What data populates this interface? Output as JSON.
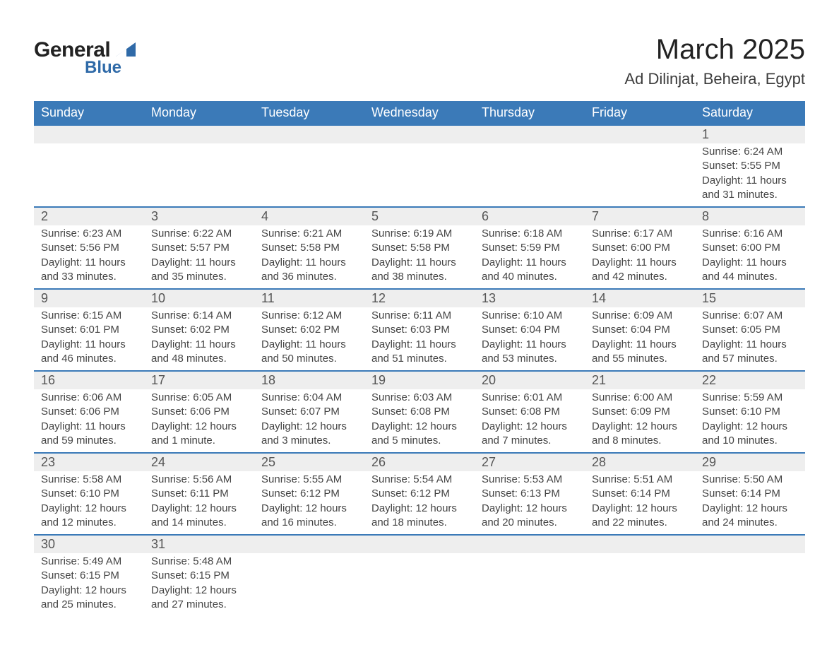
{
  "logo": {
    "text1": "General",
    "text2": "Blue"
  },
  "title": "March 2025",
  "location": "Ad Dilinjat, Beheira, Egypt",
  "colors": {
    "header_bg": "#3b7ab8",
    "header_text": "#ffffff",
    "daynum_bg": "#eeeeee",
    "row_border": "#3b7ab8",
    "body_text": "#444444",
    "logo_blue": "#2f6aa8"
  },
  "typography": {
    "title_fontsize": 40,
    "location_fontsize": 22,
    "header_fontsize": 18,
    "daynum_fontsize": 18,
    "cell_fontsize": 15
  },
  "weekdays": [
    "Sunday",
    "Monday",
    "Tuesday",
    "Wednesday",
    "Thursday",
    "Friday",
    "Saturday"
  ],
  "weeks": [
    [
      null,
      null,
      null,
      null,
      null,
      null,
      {
        "n": "1",
        "sunrise": "Sunrise: 6:24 AM",
        "sunset": "Sunset: 5:55 PM",
        "day1": "Daylight: 11 hours",
        "day2": "and 31 minutes."
      }
    ],
    [
      {
        "n": "2",
        "sunrise": "Sunrise: 6:23 AM",
        "sunset": "Sunset: 5:56 PM",
        "day1": "Daylight: 11 hours",
        "day2": "and 33 minutes."
      },
      {
        "n": "3",
        "sunrise": "Sunrise: 6:22 AM",
        "sunset": "Sunset: 5:57 PM",
        "day1": "Daylight: 11 hours",
        "day2": "and 35 minutes."
      },
      {
        "n": "4",
        "sunrise": "Sunrise: 6:21 AM",
        "sunset": "Sunset: 5:58 PM",
        "day1": "Daylight: 11 hours",
        "day2": "and 36 minutes."
      },
      {
        "n": "5",
        "sunrise": "Sunrise: 6:19 AM",
        "sunset": "Sunset: 5:58 PM",
        "day1": "Daylight: 11 hours",
        "day2": "and 38 minutes."
      },
      {
        "n": "6",
        "sunrise": "Sunrise: 6:18 AM",
        "sunset": "Sunset: 5:59 PM",
        "day1": "Daylight: 11 hours",
        "day2": "and 40 minutes."
      },
      {
        "n": "7",
        "sunrise": "Sunrise: 6:17 AM",
        "sunset": "Sunset: 6:00 PM",
        "day1": "Daylight: 11 hours",
        "day2": "and 42 minutes."
      },
      {
        "n": "8",
        "sunrise": "Sunrise: 6:16 AM",
        "sunset": "Sunset: 6:00 PM",
        "day1": "Daylight: 11 hours",
        "day2": "and 44 minutes."
      }
    ],
    [
      {
        "n": "9",
        "sunrise": "Sunrise: 6:15 AM",
        "sunset": "Sunset: 6:01 PM",
        "day1": "Daylight: 11 hours",
        "day2": "and 46 minutes."
      },
      {
        "n": "10",
        "sunrise": "Sunrise: 6:14 AM",
        "sunset": "Sunset: 6:02 PM",
        "day1": "Daylight: 11 hours",
        "day2": "and 48 minutes."
      },
      {
        "n": "11",
        "sunrise": "Sunrise: 6:12 AM",
        "sunset": "Sunset: 6:02 PM",
        "day1": "Daylight: 11 hours",
        "day2": "and 50 minutes."
      },
      {
        "n": "12",
        "sunrise": "Sunrise: 6:11 AM",
        "sunset": "Sunset: 6:03 PM",
        "day1": "Daylight: 11 hours",
        "day2": "and 51 minutes."
      },
      {
        "n": "13",
        "sunrise": "Sunrise: 6:10 AM",
        "sunset": "Sunset: 6:04 PM",
        "day1": "Daylight: 11 hours",
        "day2": "and 53 minutes."
      },
      {
        "n": "14",
        "sunrise": "Sunrise: 6:09 AM",
        "sunset": "Sunset: 6:04 PM",
        "day1": "Daylight: 11 hours",
        "day2": "and 55 minutes."
      },
      {
        "n": "15",
        "sunrise": "Sunrise: 6:07 AM",
        "sunset": "Sunset: 6:05 PM",
        "day1": "Daylight: 11 hours",
        "day2": "and 57 minutes."
      }
    ],
    [
      {
        "n": "16",
        "sunrise": "Sunrise: 6:06 AM",
        "sunset": "Sunset: 6:06 PM",
        "day1": "Daylight: 11 hours",
        "day2": "and 59 minutes."
      },
      {
        "n": "17",
        "sunrise": "Sunrise: 6:05 AM",
        "sunset": "Sunset: 6:06 PM",
        "day1": "Daylight: 12 hours",
        "day2": "and 1 minute."
      },
      {
        "n": "18",
        "sunrise": "Sunrise: 6:04 AM",
        "sunset": "Sunset: 6:07 PM",
        "day1": "Daylight: 12 hours",
        "day2": "and 3 minutes."
      },
      {
        "n": "19",
        "sunrise": "Sunrise: 6:03 AM",
        "sunset": "Sunset: 6:08 PM",
        "day1": "Daylight: 12 hours",
        "day2": "and 5 minutes."
      },
      {
        "n": "20",
        "sunrise": "Sunrise: 6:01 AM",
        "sunset": "Sunset: 6:08 PM",
        "day1": "Daylight: 12 hours",
        "day2": "and 7 minutes."
      },
      {
        "n": "21",
        "sunrise": "Sunrise: 6:00 AM",
        "sunset": "Sunset: 6:09 PM",
        "day1": "Daylight: 12 hours",
        "day2": "and 8 minutes."
      },
      {
        "n": "22",
        "sunrise": "Sunrise: 5:59 AM",
        "sunset": "Sunset: 6:10 PM",
        "day1": "Daylight: 12 hours",
        "day2": "and 10 minutes."
      }
    ],
    [
      {
        "n": "23",
        "sunrise": "Sunrise: 5:58 AM",
        "sunset": "Sunset: 6:10 PM",
        "day1": "Daylight: 12 hours",
        "day2": "and 12 minutes."
      },
      {
        "n": "24",
        "sunrise": "Sunrise: 5:56 AM",
        "sunset": "Sunset: 6:11 PM",
        "day1": "Daylight: 12 hours",
        "day2": "and 14 minutes."
      },
      {
        "n": "25",
        "sunrise": "Sunrise: 5:55 AM",
        "sunset": "Sunset: 6:12 PM",
        "day1": "Daylight: 12 hours",
        "day2": "and 16 minutes."
      },
      {
        "n": "26",
        "sunrise": "Sunrise: 5:54 AM",
        "sunset": "Sunset: 6:12 PM",
        "day1": "Daylight: 12 hours",
        "day2": "and 18 minutes."
      },
      {
        "n": "27",
        "sunrise": "Sunrise: 5:53 AM",
        "sunset": "Sunset: 6:13 PM",
        "day1": "Daylight: 12 hours",
        "day2": "and 20 minutes."
      },
      {
        "n": "28",
        "sunrise": "Sunrise: 5:51 AM",
        "sunset": "Sunset: 6:14 PM",
        "day1": "Daylight: 12 hours",
        "day2": "and 22 minutes."
      },
      {
        "n": "29",
        "sunrise": "Sunrise: 5:50 AM",
        "sunset": "Sunset: 6:14 PM",
        "day1": "Daylight: 12 hours",
        "day2": "and 24 minutes."
      }
    ],
    [
      {
        "n": "30",
        "sunrise": "Sunrise: 5:49 AM",
        "sunset": "Sunset: 6:15 PM",
        "day1": "Daylight: 12 hours",
        "day2": "and 25 minutes."
      },
      {
        "n": "31",
        "sunrise": "Sunrise: 5:48 AM",
        "sunset": "Sunset: 6:15 PM",
        "day1": "Daylight: 12 hours",
        "day2": "and 27 minutes."
      },
      null,
      null,
      null,
      null,
      null
    ]
  ]
}
